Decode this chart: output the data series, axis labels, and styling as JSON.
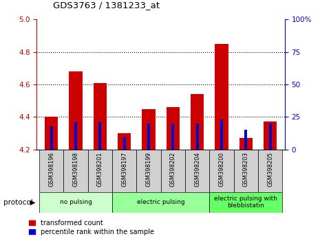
{
  "title": "GDS3763 / 1381233_at",
  "samples": [
    "GSM398196",
    "GSM398198",
    "GSM398201",
    "GSM398197",
    "GSM398199",
    "GSM398202",
    "GSM398204",
    "GSM398200",
    "GSM398203",
    "GSM398205"
  ],
  "transformed_counts": [
    4.4,
    4.68,
    4.61,
    4.3,
    4.45,
    4.46,
    4.54,
    4.85,
    4.27,
    4.37
  ],
  "percentile_ranks": [
    18,
    21,
    21,
    10,
    20,
    20,
    20,
    23,
    15,
    20
  ],
  "ylim_left": [
    4.2,
    5.0
  ],
  "ylim_right": [
    0,
    100
  ],
  "y_ticks_left": [
    4.2,
    4.4,
    4.6,
    4.8,
    5.0
  ],
  "y_ticks_right": [
    0,
    25,
    50,
    75,
    100
  ],
  "groups": [
    {
      "label": "no pulsing",
      "start": 0,
      "end": 3,
      "color": "#ccffcc"
    },
    {
      "label": "electric pulsing",
      "start": 3,
      "end": 7,
      "color": "#99ff99"
    },
    {
      "label": "electric pulsing with\nblebbistatin",
      "start": 7,
      "end": 10,
      "color": "#66ff66"
    }
  ],
  "bar_color_red": "#cc0000",
  "bar_color_blue": "#0000cc",
  "red_bar_width": 0.55,
  "blue_bar_width": 0.12,
  "bg_color_plot": "#ffffff",
  "bg_color_ticks": "#d0d0d0",
  "left_axis_color": "#cc0000",
  "right_axis_color": "#0000cc",
  "protocol_label": "protocol",
  "legend_red": "transformed count",
  "legend_blue": "percentile rank within the sample",
  "grid_yticks": [
    4.4,
    4.6,
    4.8
  ]
}
